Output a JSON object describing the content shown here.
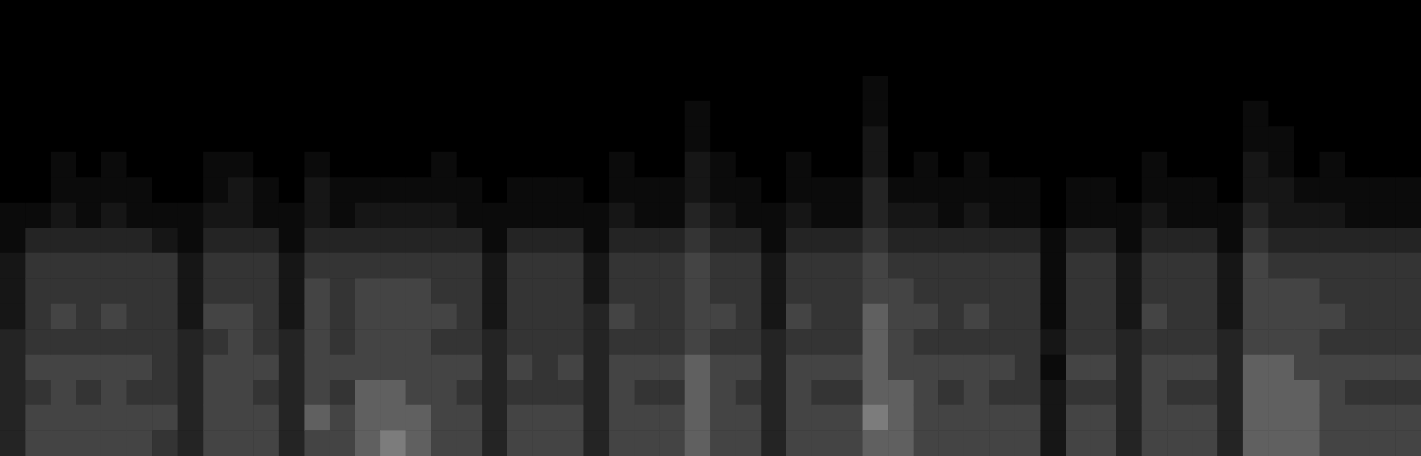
{
  "chart_data": {
    "type": "heatmap",
    "tick_labels": false,
    "zlim": [
      0,
      10
    ],
    "cells": [
      [
        0,
        0,
        0,
        0,
        0,
        0,
        0,
        0,
        1,
        1,
        2,
        2,
        2,
        3,
        3,
        3,
        3,
        3
      ],
      [
        0,
        0,
        0,
        0,
        0,
        0,
        0,
        0,
        1,
        3,
        4,
        4,
        4,
        4,
        5,
        4,
        5,
        5
      ],
      [
        0,
        0,
        0,
        0,
        0,
        0,
        1,
        1,
        2,
        3,
        4,
        4,
        5,
        4,
        5,
        5,
        5,
        5
      ],
      [
        0,
        0,
        0,
        0,
        0,
        0,
        0,
        1,
        1,
        3,
        4,
        4,
        4,
        4,
        5,
        4,
        5,
        5
      ],
      [
        0,
        0,
        0,
        0,
        0,
        0,
        1,
        1,
        2,
        3,
        4,
        4,
        5,
        4,
        5,
        5,
        5,
        5
      ],
      [
        0,
        0,
        0,
        0,
        0,
        0,
        0,
        1,
        1,
        3,
        4,
        4,
        4,
        4,
        5,
        4,
        5,
        5
      ],
      [
        0,
        0,
        0,
        0,
        0,
        0,
        0,
        0,
        1,
        2,
        4,
        4,
        4,
        4,
        4,
        4,
        5,
        4
      ],
      [
        0,
        0,
        0,
        0,
        0,
        0,
        0,
        0,
        1,
        1,
        2,
        2,
        2,
        3,
        3,
        3,
        3,
        3
      ],
      [
        0,
        0,
        0,
        0,
        0,
        0,
        1,
        1,
        2,
        3,
        4,
        4,
        5,
        4,
        5,
        5,
        5,
        5
      ],
      [
        0,
        0,
        0,
        0,
        0,
        0,
        1,
        2,
        2,
        3,
        4,
        4,
        5,
        5,
        5,
        5,
        5,
        5
      ],
      [
        0,
        0,
        0,
        0,
        0,
        0,
        0,
        1,
        1,
        3,
        4,
        4,
        4,
        4,
        5,
        4,
        5,
        5
      ],
      [
        0,
        0,
        0,
        0,
        0,
        0,
        0,
        0,
        1,
        1,
        2,
        2,
        2,
        3,
        3,
        3,
        3,
        3
      ],
      [
        0,
        0,
        0,
        0,
        0,
        0,
        1,
        2,
        2,
        3,
        4,
        5,
        5,
        5,
        5,
        5,
        6,
        5
      ],
      [
        0,
        0,
        0,
        0,
        0,
        0,
        0,
        1,
        1,
        3,
        4,
        4,
        4,
        4,
        5,
        4,
        5,
        5
      ],
      [
        0,
        0,
        0,
        0,
        0,
        0,
        0,
        1,
        2,
        3,
        4,
        5,
        5,
        5,
        5,
        6,
        6,
        6
      ],
      [
        0,
        0,
        0,
        0,
        0,
        0,
        0,
        1,
        2,
        3,
        4,
        5,
        5,
        5,
        5,
        6,
        6,
        7
      ],
      [
        0,
        0,
        0,
        0,
        0,
        0,
        0,
        1,
        2,
        3,
        4,
        5,
        5,
        5,
        5,
        5,
        6,
        6
      ],
      [
        0,
        0,
        0,
        0,
        0,
        0,
        1,
        1,
        2,
        3,
        4,
        4,
        5,
        4,
        5,
        5,
        5,
        5
      ],
      [
        0,
        0,
        0,
        0,
        0,
        0,
        0,
        1,
        1,
        3,
        4,
        4,
        4,
        4,
        5,
        4,
        5,
        5
      ],
      [
        0,
        0,
        0,
        0,
        0,
        0,
        0,
        0,
        1,
        1,
        2,
        2,
        2,
        3,
        3,
        3,
        3,
        3
      ],
      [
        0,
        0,
        0,
        0,
        0,
        0,
        0,
        1,
        1,
        3,
        4,
        4,
        4,
        4,
        5,
        4,
        5,
        5
      ],
      [
        0,
        0,
        0,
        0,
        0,
        0,
        0,
        1,
        1,
        3,
        4,
        4,
        4,
        4,
        4,
        4,
        5,
        5
      ],
      [
        0,
        0,
        0,
        0,
        0,
        0,
        0,
        1,
        1,
        3,
        4,
        4,
        4,
        4,
        5,
        4,
        5,
        5
      ],
      [
        0,
        0,
        0,
        0,
        0,
        0,
        0,
        0,
        1,
        1,
        2,
        2,
        3,
        3,
        3,
        3,
        3,
        3
      ],
      [
        0,
        0,
        0,
        0,
        0,
        0,
        1,
        1,
        2,
        3,
        4,
        4,
        5,
        4,
        5,
        5,
        5,
        5
      ],
      [
        0,
        0,
        0,
        0,
        0,
        0,
        0,
        1,
        1,
        3,
        4,
        4,
        4,
        4,
        5,
        4,
        5,
        5
      ],
      [
        0,
        0,
        0,
        0,
        0,
        0,
        0,
        1,
        1,
        3,
        4,
        4,
        4,
        4,
        5,
        4,
        5,
        5
      ],
      [
        0,
        0,
        0,
        0,
        1,
        1,
        2,
        2,
        3,
        4,
        5,
        5,
        5,
        5,
        6,
        6,
        6,
        6
      ],
      [
        0,
        0,
        0,
        0,
        0,
        0,
        1,
        1,
        2,
        3,
        4,
        4,
        5,
        4,
        5,
        5,
        5,
        5
      ],
      [
        0,
        0,
        0,
        0,
        0,
        0,
        0,
        1,
        1,
        3,
        4,
        4,
        4,
        4,
        5,
        4,
        5,
        5
      ],
      [
        0,
        0,
        0,
        0,
        0,
        0,
        0,
        0,
        1,
        1,
        2,
        2,
        2,
        3,
        3,
        3,
        3,
        3
      ],
      [
        0,
        0,
        0,
        0,
        0,
        0,
        1,
        1,
        2,
        3,
        4,
        4,
        5,
        4,
        5,
        5,
        5,
        5
      ],
      [
        0,
        0,
        0,
        0,
        0,
        0,
        0,
        1,
        1,
        3,
        4,
        4,
        4,
        4,
        5,
        4,
        5,
        5
      ],
      [
        0,
        0,
        0,
        0,
        0,
        0,
        0,
        1,
        1,
        3,
        4,
        4,
        4,
        4,
        5,
        4,
        5,
        5
      ],
      [
        0,
        0,
        0,
        1,
        1,
        2,
        2,
        3,
        3,
        4,
        5,
        5,
        6,
        6,
        6,
        6,
        7,
        6
      ],
      [
        0,
        0,
        0,
        0,
        0,
        0,
        0,
        1,
        2,
        3,
        4,
        5,
        5,
        5,
        5,
        6,
        6,
        6
      ],
      [
        0,
        0,
        0,
        0,
        0,
        0,
        1,
        1,
        2,
        3,
        4,
        4,
        5,
        4,
        5,
        5,
        5,
        5
      ],
      [
        0,
        0,
        0,
        0,
        0,
        0,
        0,
        1,
        1,
        3,
        4,
        4,
        4,
        4,
        5,
        4,
        5,
        5
      ],
      [
        0,
        0,
        0,
        0,
        0,
        0,
        1,
        1,
        2,
        3,
        4,
        4,
        5,
        4,
        5,
        5,
        5,
        5
      ],
      [
        0,
        0,
        0,
        0,
        0,
        0,
        0,
        1,
        1,
        3,
        4,
        4,
        4,
        4,
        5,
        4,
        5,
        5
      ],
      [
        0,
        0,
        0,
        0,
        0,
        0,
        0,
        1,
        1,
        3,
        4,
        4,
        4,
        4,
        4,
        4,
        5,
        5
      ],
      [
        0,
        0,
        0,
        0,
        0,
        0,
        0,
        0,
        0,
        1,
        1,
        1,
        1,
        2,
        1,
        2,
        2,
        2
      ],
      [
        0,
        0,
        0,
        0,
        0,
        0,
        0,
        1,
        1,
        3,
        4,
        4,
        4,
        4,
        5,
        4,
        5,
        5
      ],
      [
        0,
        0,
        0,
        0,
        0,
        0,
        0,
        1,
        1,
        3,
        4,
        4,
        4,
        4,
        5,
        4,
        5,
        5
      ],
      [
        0,
        0,
        0,
        0,
        0,
        0,
        0,
        0,
        1,
        1,
        2,
        2,
        2,
        3,
        3,
        3,
        3,
        3
      ],
      [
        0,
        0,
        0,
        0,
        0,
        0,
        1,
        1,
        2,
        3,
        4,
        4,
        5,
        4,
        5,
        5,
        5,
        5
      ],
      [
        0,
        0,
        0,
        0,
        0,
        0,
        0,
        1,
        1,
        3,
        4,
        4,
        4,
        4,
        5,
        4,
        5,
        5
      ],
      [
        0,
        0,
        0,
        0,
        0,
        0,
        0,
        1,
        1,
        3,
        4,
        4,
        4,
        4,
        5,
        4,
        5,
        5
      ],
      [
        0,
        0,
        0,
        0,
        0,
        0,
        0,
        0,
        1,
        1,
        2,
        2,
        2,
        3,
        3,
        3,
        3,
        3
      ],
      [
        0,
        0,
        0,
        0,
        1,
        1,
        2,
        2,
        3,
        4,
        5,
        5,
        5,
        5,
        6,
        6,
        6,
        6
      ],
      [
        0,
        0,
        0,
        0,
        0,
        1,
        1,
        2,
        2,
        3,
        4,
        5,
        5,
        5,
        6,
        6,
        6,
        6
      ],
      [
        0,
        0,
        0,
        0,
        0,
        0,
        0,
        1,
        2,
        3,
        4,
        5,
        5,
        5,
        5,
        6,
        6,
        6
      ],
      [
        0,
        0,
        0,
        0,
        0,
        0,
        1,
        1,
        2,
        3,
        4,
        4,
        5,
        4,
        5,
        5,
        5,
        5
      ],
      [
        0,
        0,
        0,
        0,
        0,
        0,
        0,
        1,
        1,
        3,
        4,
        4,
        4,
        4,
        5,
        4,
        5,
        5
      ],
      [
        0,
        0,
        0,
        0,
        0,
        0,
        0,
        1,
        1,
        3,
        4,
        4,
        4,
        4,
        5,
        4,
        5,
        5
      ],
      [
        0,
        0,
        0,
        0,
        0,
        0,
        0,
        1,
        1,
        3,
        4,
        4,
        4,
        4,
        5,
        4,
        5,
        5
      ]
    ]
  }
}
